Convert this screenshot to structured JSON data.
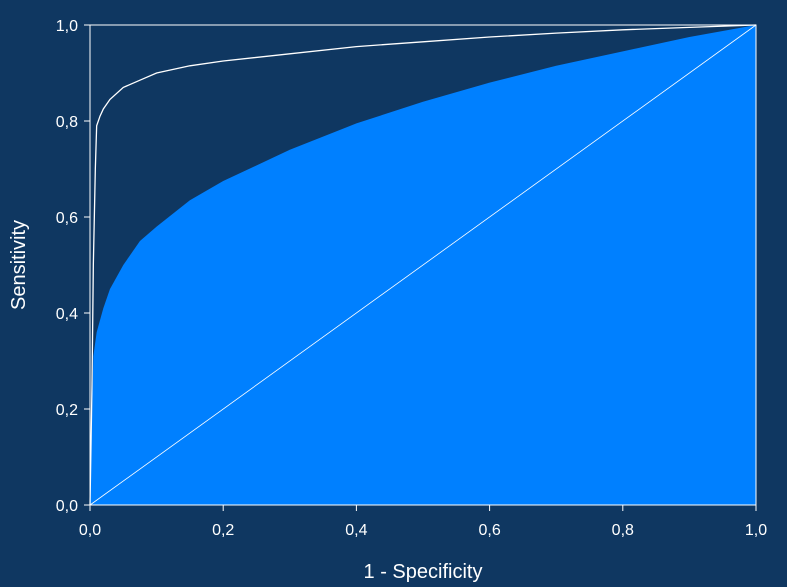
{
  "chart_data": {
    "type": "area",
    "title": "",
    "xlabel": "1 - Specificity",
    "ylabel": "Sensitivity",
    "xlim": [
      0,
      1
    ],
    "ylim": [
      0,
      1
    ],
    "x_ticks": [
      "0,0",
      "0,2",
      "0,4",
      "0,6",
      "0,8",
      "1,0"
    ],
    "y_ticks": [
      "0,0",
      "0,2",
      "0,4",
      "0,6",
      "0,8",
      "1,0"
    ],
    "grid": false,
    "legend": "none",
    "colors": {
      "background": "#0f3761",
      "plot_area": "#0f3761",
      "fill": "#0080ff",
      "lines": "#ffffff"
    },
    "series": [
      {
        "kind": "filled-curve",
        "x": [
          0,
          0.005,
          0.01,
          0.02,
          0.03,
          0.05,
          0.075,
          0.1,
          0.15,
          0.2,
          0.3,
          0.4,
          0.5,
          0.6,
          0.7,
          0.8,
          0.9,
          1.0
        ],
        "y": [
          0,
          0.31,
          0.36,
          0.41,
          0.45,
          0.5,
          0.55,
          0.58,
          0.635,
          0.675,
          0.74,
          0.795,
          0.84,
          0.88,
          0.915,
          0.945,
          0.975,
          1.0
        ]
      },
      {
        "kind": "curve",
        "x": [
          0,
          0.003,
          0.005,
          0.008,
          0.01,
          0.015,
          0.02,
          0.03,
          0.05,
          0.075,
          0.1,
          0.15,
          0.2,
          0.3,
          0.4,
          0.5,
          0.6,
          0.7,
          0.8,
          0.9,
          1.0
        ],
        "y": [
          0,
          0.25,
          0.5,
          0.7,
          0.79,
          0.81,
          0.825,
          0.845,
          0.87,
          0.885,
          0.9,
          0.915,
          0.925,
          0.94,
          0.955,
          0.965,
          0.975,
          0.983,
          0.99,
          0.995,
          1.0
        ]
      },
      {
        "kind": "diagonal",
        "x": [
          0,
          1
        ],
        "y": [
          0,
          1
        ]
      }
    ]
  }
}
